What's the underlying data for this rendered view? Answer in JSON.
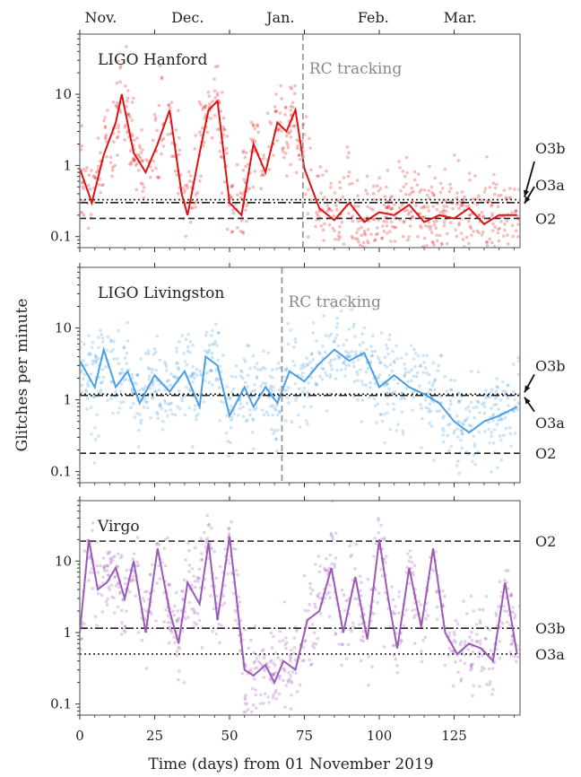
{
  "chart_data": {
    "type": "line",
    "xlabel": "Time (days) from 01 November 2019",
    "ylabel": "Glitches per minute",
    "xlim": [
      0,
      147
    ],
    "ylim": [
      0.07,
      70
    ],
    "yscale": "log",
    "x_ticks": [
      0,
      25,
      50,
      75,
      100,
      125
    ],
    "y_ticks": [
      0.1,
      1,
      10
    ],
    "y_tick_labels": [
      "0.1",
      "1",
      "10"
    ],
    "top_axis": {
      "labels": [
        "Nov.",
        "Dec.",
        "Jan.",
        "Feb.",
        "Mar."
      ],
      "positions": [
        7,
        36,
        67,
        98,
        127
      ]
    },
    "panels": [
      {
        "title": "LIGO Hanford",
        "color": "#dd1111",
        "rc_tracking": {
          "x": 74.5,
          "label": "RC tracking"
        },
        "reference_lines": [
          {
            "label": "O3b",
            "value": 0.33,
            "style": "dotted"
          },
          {
            "label": "O3a",
            "value": 0.3,
            "style": "dashdot"
          },
          {
            "label": "O2",
            "value": 0.18,
            "style": "dashed"
          }
        ],
        "series": [
          {
            "x": [
              0,
              4,
              8,
              12,
              14,
              18,
              22,
              26,
              30,
              34,
              36,
              40,
              43,
              46,
              50,
              54,
              58,
              62,
              66,
              69,
              72,
              75,
              80,
              85,
              90,
              95,
              100,
              105,
              110,
              115,
              120,
              125,
              130,
              135,
              140,
              146
            ],
            "y": [
              0.9,
              0.3,
              1.4,
              4.0,
              10.0,
              1.5,
              0.8,
              2.0,
              6.0,
              0.4,
              0.2,
              1.5,
              6.0,
              8.0,
              0.3,
              0.2,
              2.0,
              0.8,
              4.0,
              3.0,
              6.0,
              0.9,
              0.25,
              0.17,
              0.3,
              0.16,
              0.22,
              0.2,
              0.28,
              0.16,
              0.2,
              0.18,
              0.25,
              0.15,
              0.2,
              0.2
            ]
          }
        ]
      },
      {
        "title": "LIGO Livingston",
        "color": "#4a9fe3",
        "rc_tracking": {
          "x": 67.5,
          "label": "RC tracking"
        },
        "reference_lines": [
          {
            "label": "O3b",
            "value": 1.2,
            "style": "dotted"
          },
          {
            "label": "O3a",
            "value": 1.15,
            "style": "dashdot"
          },
          {
            "label": "O2",
            "value": 0.18,
            "style": "dashed"
          }
        ],
        "series": [
          {
            "x": [
              0,
              5,
              8,
              12,
              16,
              20,
              25,
              30,
              35,
              40,
              42,
              46,
              50,
              55,
              58,
              62,
              66,
              70,
              75,
              80,
              85,
              90,
              95,
              100,
              105,
              110,
              115,
              120,
              125,
              130,
              135,
              140,
              146
            ],
            "y": [
              3.5,
              1.5,
              5.0,
              1.5,
              2.5,
              0.9,
              2.2,
              1.3,
              2.5,
              0.8,
              4.0,
              3.0,
              0.6,
              1.5,
              0.8,
              1.5,
              0.9,
              2.5,
              1.8,
              3.2,
              5.0,
              3.5,
              4.5,
              1.5,
              2.2,
              1.5,
              1.2,
              0.9,
              0.5,
              0.35,
              0.5,
              0.6,
              0.8
            ]
          }
        ]
      },
      {
        "title": "Virgo",
        "color": "#9b59b6",
        "reference_lines": [
          {
            "label": "O2",
            "value": 19,
            "style": "dashed"
          },
          {
            "label": "O3b",
            "value": 1.15,
            "style": "dashdot"
          },
          {
            "label": "O3a",
            "value": 0.5,
            "style": "dotted"
          }
        ],
        "series": [
          {
            "x": [
              0,
              3,
              6,
              9,
              12,
              15,
              18,
              22,
              26,
              30,
              33,
              36,
              40,
              43,
              46,
              50,
              52,
              55,
              58,
              62,
              65,
              68,
              72,
              76,
              80,
              84,
              88,
              92,
              96,
              100,
              103,
              106,
              110,
              114,
              118,
              122,
              126,
              130,
              134,
              138,
              142,
              146
            ],
            "y": [
              1.0,
              20.0,
              4.0,
              5.0,
              8.0,
              3.0,
              10.0,
              1.0,
              15.0,
              2.0,
              0.7,
              5.0,
              2.5,
              18.0,
              1.5,
              22.0,
              4.0,
              0.3,
              0.25,
              0.35,
              0.2,
              0.4,
              0.3,
              1.5,
              2.0,
              8.0,
              1.0,
              6.0,
              0.8,
              20.0,
              3.0,
              0.6,
              8.0,
              1.2,
              15.0,
              1.0,
              0.5,
              0.7,
              0.6,
              0.4,
              5.0,
              0.5
            ]
          }
        ]
      }
    ]
  }
}
